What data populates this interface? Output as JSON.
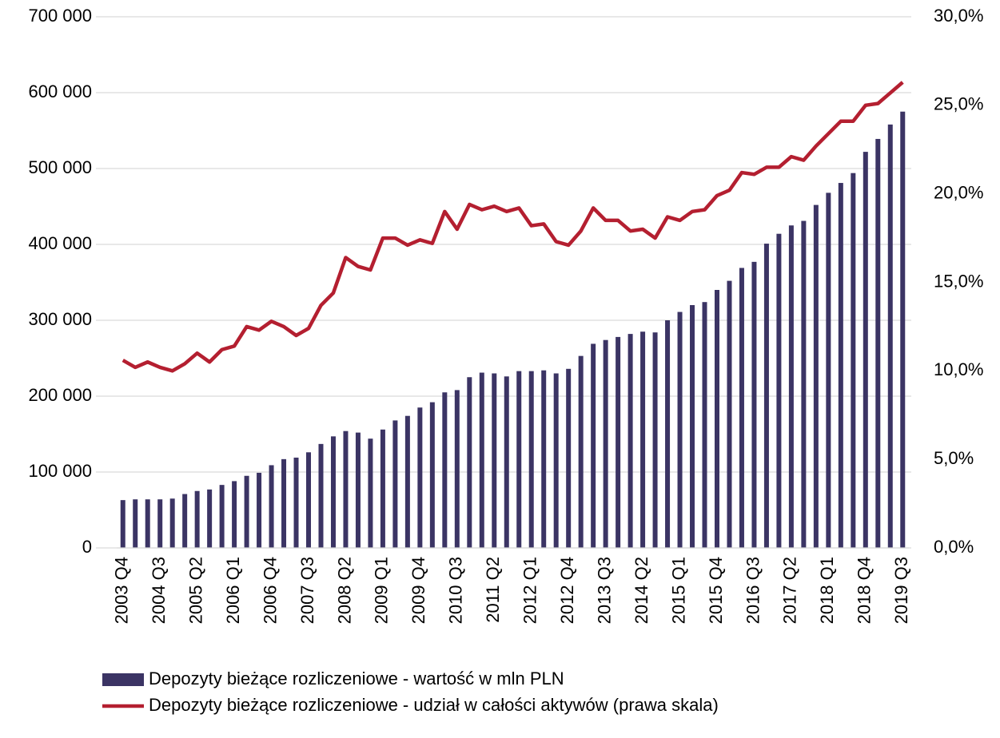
{
  "chart_data": {
    "type": "bar",
    "categories": [
      "2003 Q4",
      null,
      null,
      "2004 Q3",
      null,
      null,
      "2005 Q2",
      null,
      null,
      "2006 Q1",
      null,
      null,
      "2006 Q4",
      null,
      null,
      "2007 Q3",
      null,
      null,
      "2008 Q2",
      null,
      null,
      "2009 Q1",
      null,
      null,
      "2009 Q4",
      null,
      null,
      "2010 Q3",
      null,
      null,
      "2011 Q2",
      null,
      null,
      "2012 Q1",
      null,
      null,
      "2012 Q4",
      null,
      null,
      "2013 Q3",
      null,
      null,
      "2014 Q2",
      null,
      null,
      "2015 Q1",
      null,
      null,
      "2015 Q4",
      null,
      null,
      "2016 Q3",
      null,
      null,
      "2017 Q2",
      null,
      null,
      "2018 Q1",
      null,
      null,
      "2018 Q4",
      null,
      null,
      "2019 Q3"
    ],
    "series": [
      {
        "name": "Depozyty bieżące rozliczeniowe - wartość w mln PLN",
        "type": "bar",
        "color": "#3b3464",
        "values": [
          63000,
          64000,
          64000,
          64000,
          65000,
          71000,
          75000,
          77000,
          83000,
          88000,
          95000,
          99000,
          109000,
          117000,
          119000,
          126000,
          137000,
          147000,
          154000,
          152000,
          144000,
          156000,
          168000,
          174000,
          185000,
          192000,
          205000,
          208000,
          225000,
          231000,
          230000,
          226000,
          233000,
          233000,
          234000,
          230000,
          236000,
          253000,
          269000,
          274000,
          278000,
          282000,
          285000,
          284000,
          300000,
          311000,
          320000,
          324000,
          340000,
          352000,
          369000,
          377000,
          401000,
          414000,
          425000,
          431000,
          452000,
          468000,
          481000,
          494000,
          522000,
          539000,
          558000,
          575000
        ]
      },
      {
        "name": "Depozyty bieżące rozliczeniowe - udział w całości aktywów (prawa skala)",
        "type": "line",
        "axis": "y2",
        "color": "#b41f30",
        "values": [
          10.6,
          10.2,
          10.5,
          10.2,
          10.0,
          10.4,
          11.0,
          10.5,
          11.2,
          11.4,
          12.5,
          12.3,
          12.8,
          12.5,
          12.0,
          12.4,
          13.7,
          14.4,
          16.4,
          15.9,
          15.7,
          17.5,
          17.5,
          17.1,
          17.4,
          17.2,
          19.0,
          18.0,
          19.4,
          19.1,
          19.3,
          19.0,
          19.2,
          18.2,
          18.3,
          17.3,
          17.1,
          17.9,
          19.2,
          18.5,
          18.5,
          17.9,
          18.0,
          17.5,
          18.7,
          18.5,
          19.0,
          19.1,
          19.9,
          20.2,
          21.2,
          21.1,
          21.5,
          21.5,
          22.1,
          21.9,
          22.7,
          23.4,
          24.1,
          24.1,
          25.0,
          25.1,
          25.7,
          26.3
        ]
      }
    ],
    "ylim": [
      0,
      700000
    ],
    "yticks": [
      0,
      {
        "value": 100000,
        "label": "100 000"
      },
      {
        "value": 200000,
        "label": "200 000"
      },
      {
        "value": 300000,
        "label": "300 000"
      },
      {
        "value": 400000,
        "label": "400 000"
      },
      {
        "value": 500000,
        "label": "500 000"
      },
      {
        "value": 600000,
        "label": "600 000"
      },
      {
        "value": 700000,
        "label": "700 000"
      }
    ],
    "y2lim": [
      0,
      30
    ],
    "y2ticks": [
      {
        "value": 0,
        "label": "0,0%"
      },
      {
        "value": 5,
        "label": "5,0%"
      },
      {
        "value": 10,
        "label": "10,0%"
      },
      {
        "value": 15,
        "label": "15,0%"
      },
      {
        "value": 20,
        "label": "20,0%"
      },
      {
        "value": 25,
        "label": "25,0%"
      },
      {
        "value": 30,
        "label": "30,0%"
      }
    ],
    "grid": true,
    "legend": "bottom"
  }
}
